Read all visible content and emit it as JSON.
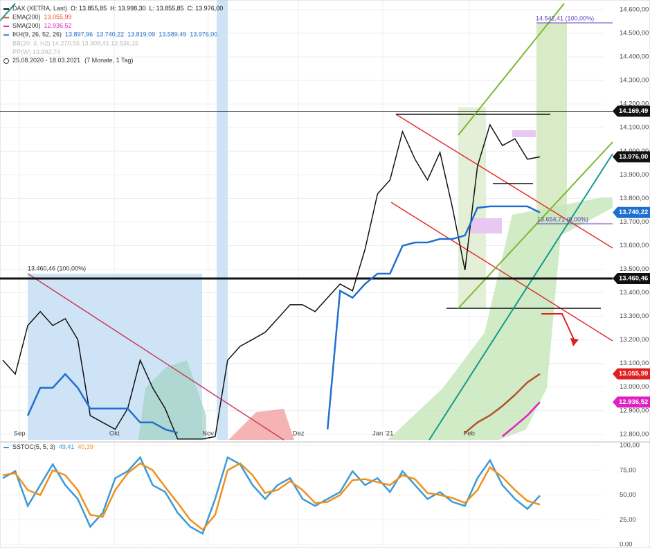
{
  "chart_data": [
    {
      "type": "line",
      "x": [
        0,
        3,
        6,
        9,
        12,
        15,
        18,
        21,
        24,
        27,
        30,
        33,
        36,
        39,
        42,
        45,
        48,
        51,
        54,
        57,
        60,
        63,
        66,
        69,
        72,
        75,
        78,
        81,
        84,
        87,
        90,
        93,
        96,
        99,
        102,
        105,
        108,
        111,
        114,
        117,
        120,
        123,
        126,
        129
      ],
      "xlim": [
        -0.67,
        144.3
      ],
      "xticks": [
        {
          "value": 4,
          "label": "Sep"
        },
        {
          "value": 26.8,
          "label": "Okt"
        },
        {
          "value": 49.3,
          "label": "Nov"
        },
        {
          "value": 71,
          "label": "Dez"
        },
        {
          "value": 91.3,
          "label": "Jan '21"
        },
        {
          "value": 112,
          "label": "Feb"
        }
      ],
      "ylim": [
        12776,
        14641
      ],
      "yticks": [
        {
          "value": 12800,
          "label": "12.800,00"
        },
        {
          "value": 12900,
          "label": "12.900,00"
        },
        {
          "value": 13000,
          "label": "13.000,00"
        },
        {
          "value": 13100,
          "label": "13.100,00"
        },
        {
          "value": 13200,
          "label": "13.200,00"
        },
        {
          "value": 13300,
          "label": "13.300,00"
        },
        {
          "value": 13400,
          "label": "13.400,00"
        },
        {
          "value": 13500,
          "label": "13.500,00"
        },
        {
          "value": 13600,
          "label": "13.600,00"
        },
        {
          "value": 13700,
          "label": "13.700,00"
        },
        {
          "value": 13800,
          "label": "13.800,00"
        },
        {
          "value": 13900,
          "label": "13.900,00"
        },
        {
          "value": 14000,
          "label": "14.000,00"
        },
        {
          "value": 14100,
          "label": "14.100,00"
        },
        {
          "value": 14200,
          "label": "14.200,00"
        },
        {
          "value": 14300,
          "label": "14.300,00"
        },
        {
          "value": 14400,
          "label": "14.400,00"
        },
        {
          "value": 14500,
          "label": "14.500,00"
        },
        {
          "value": 14600,
          "label": "14.600,00"
        }
      ],
      "grid": true,
      "series": [
        {
          "name": "DAX (XETRA, Last)",
          "color": "#111111",
          "legend_values": [
            "O: 13.855,85",
            "H: 13.998,30",
            "L: 13.855,85",
            "C: 13.976,00"
          ],
          "values": [
            13114,
            13055,
            13261,
            13320,
            13261,
            13290,
            13202,
            12879,
            12850,
            12821,
            12909,
            13114,
            12997,
            12909,
            12780,
            12780,
            12780,
            12790,
            13114,
            13173,
            13202,
            13232,
            13290,
            13349,
            13349,
            13320,
            13379,
            13437,
            13408,
            13584,
            13819,
            13878,
            14083,
            13966,
            13878,
            13995,
            13760,
            13496,
            13936,
            14112,
            14024,
            14053,
            13966,
            13976
          ]
        },
        {
          "name": "EMA(200)",
          "color": "#e05030",
          "line_color": "#b0522a",
          "legend_values": [
            "13.055,99"
          ],
          "values": [
            null,
            null,
            null,
            null,
            null,
            null,
            null,
            null,
            null,
            null,
            null,
            null,
            null,
            null,
            null,
            null,
            null,
            null,
            null,
            null,
            null,
            null,
            null,
            null,
            null,
            null,
            null,
            null,
            null,
            null,
            null,
            null,
            null,
            null,
            null,
            null,
            null,
            12806,
            12850,
            12880,
            12920,
            12967,
            13020,
            13055.99
          ]
        },
        {
          "name": "SMA(200)",
          "color": "#e020c0",
          "legend_values": [
            "12.936,52"
          ],
          "values": [
            null,
            null,
            null,
            null,
            null,
            null,
            null,
            null,
            null,
            null,
            null,
            null,
            null,
            null,
            null,
            null,
            null,
            null,
            null,
            null,
            null,
            null,
            null,
            null,
            null,
            null,
            null,
            null,
            null,
            null,
            null,
            null,
            null,
            null,
            null,
            null,
            null,
            null,
            null,
            null,
            12791,
            12835,
            12880,
            12936.52
          ]
        },
        {
          "name": "IKH(9, 26, 52, 26)",
          "color": "#1f6fd0",
          "legend_values": [
            "13.897,96",
            "13.740,22",
            "13.819,09",
            "13.589,49",
            "13.976,00"
          ],
          "values": [
            null,
            null,
            12879,
            12997,
            12997,
            13055,
            12997,
            12909,
            12909,
            12909,
            12909,
            12850,
            12850,
            12821,
            12806,
            null,
            null,
            null,
            null,
            null,
            null,
            null,
            null,
            null,
            null,
            null,
            12821,
            13408,
            13379,
            13437,
            13481,
            13481,
            13599,
            13613,
            13613,
            13628,
            13628,
            13643,
            13760,
            13766,
            13766,
            13766,
            13766,
            13740
          ]
        }
      ],
      "inactive_legend": [
        "BB(20, 3, H2)  14.270,55  13.908,41  13.536,15",
        "PP(W)  13.992,74"
      ],
      "period": "25.08.2020 - 18.03.2021",
      "period_note": "(7 Monate, 1 Tag)",
      "annotations": [
        "13.460,46 (100,00%)",
        "14.542,41 (100,00%)",
        "13.654,71 (0,00%)"
      ],
      "price_tags": [
        {
          "value": 14169.49,
          "label": "14.169,49",
          "color": "#111111"
        },
        {
          "value": 13976,
          "label": "13.976,00",
          "color": "#111111"
        },
        {
          "value": 13740.22,
          "label": "13.740,22",
          "color": "#1f6fd0"
        },
        {
          "value": 13460.46,
          "label": "13.460,46",
          "color": "#111111"
        },
        {
          "value": 13055.99,
          "label": "13.055,99",
          "color": "#e02020"
        },
        {
          "value": 12936.52,
          "label": "12.936,52",
          "color": "#e020c0"
        }
      ]
    },
    {
      "type": "line",
      "title": "SSTOC(5, 5, 3)",
      "ylim": [
        0,
        100
      ],
      "yticks": [
        {
          "value": 0,
          "label": "0,00"
        },
        {
          "value": 25,
          "label": "25,00"
        },
        {
          "value": 50,
          "label": "50,00"
        },
        {
          "value": 75,
          "label": "75,00"
        },
        {
          "value": 100,
          "label": "100,00"
        }
      ],
      "series": [
        {
          "color": "#3a9ad8",
          "legend_value": "49,41",
          "values": [
            67,
            74,
            39,
            60,
            81,
            60,
            46,
            18,
            32,
            67,
            74,
            88,
            60,
            53,
            32,
            18,
            11,
            46,
            88,
            81,
            60,
            46,
            60,
            67,
            46,
            39,
            46,
            53,
            74,
            60,
            67,
            53,
            74,
            60,
            46,
            53,
            43,
            39,
            67,
            85,
            60,
            46,
            36,
            49.41
          ]
        },
        {
          "color": "#f0901a",
          "legend_value": "40,39",
          "values": [
            70,
            72,
            55,
            50,
            75,
            70,
            55,
            30,
            28,
            55,
            72,
            82,
            75,
            58,
            42,
            25,
            15,
            30,
            75,
            82,
            70,
            52,
            55,
            64,
            55,
            42,
            43,
            50,
            65,
            66,
            63,
            60,
            70,
            66,
            52,
            50,
            47,
            42,
            55,
            78,
            68,
            55,
            44,
            40.39
          ]
        }
      ]
    }
  ]
}
